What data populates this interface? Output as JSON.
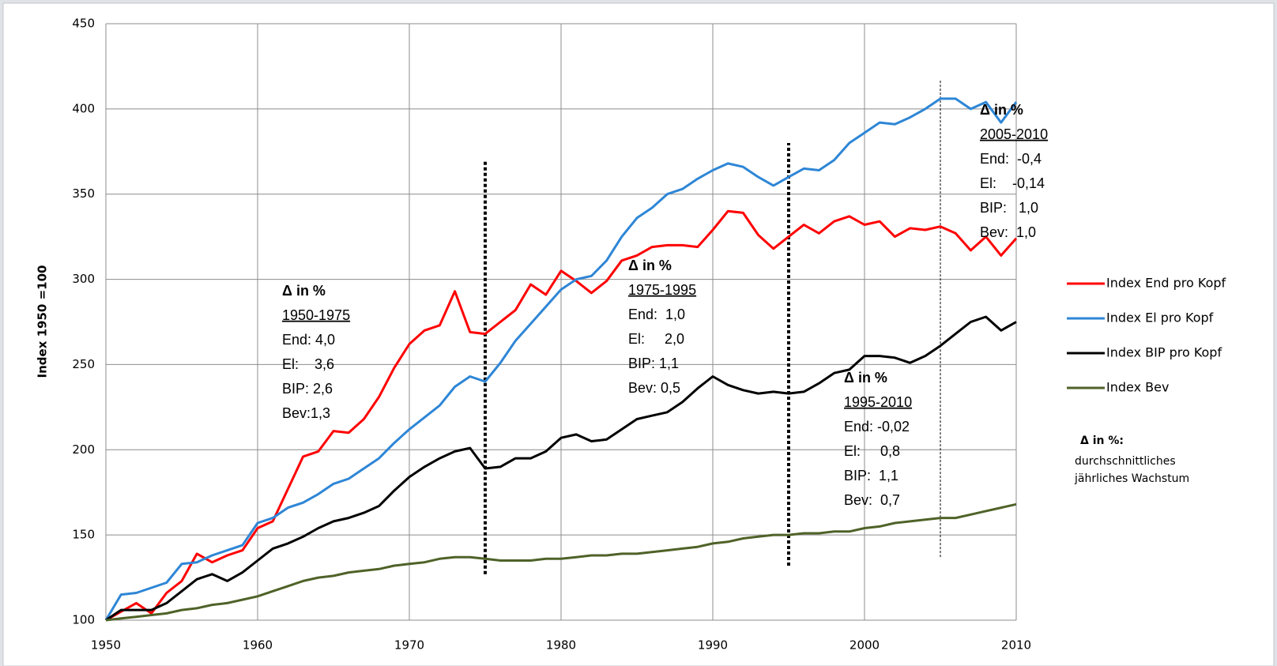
{
  "chart_data": {
    "type": "line",
    "ylabel": "Index 1950 =100",
    "x": [
      1950,
      1951,
      1952,
      1953,
      1954,
      1955,
      1956,
      1957,
      1958,
      1959,
      1960,
      1961,
      1962,
      1963,
      1964,
      1965,
      1966,
      1967,
      1968,
      1969,
      1970,
      1971,
      1972,
      1973,
      1974,
      1975,
      1976,
      1977,
      1978,
      1979,
      1980,
      1981,
      1982,
      1983,
      1984,
      1985,
      1986,
      1987,
      1988,
      1989,
      1990,
      1991,
      1992,
      1993,
      1994,
      1995,
      1996,
      1997,
      1998,
      1999,
      2000,
      2001,
      2002,
      2003,
      2004,
      2005,
      2006,
      2007,
      2008,
      2009,
      2010
    ],
    "xlim": [
      1950,
      2010
    ],
    "xticks": [
      1950,
      1960,
      1970,
      1980,
      1990,
      2000,
      2010
    ],
    "ylim": [
      100,
      450
    ],
    "yticks": [
      100,
      150,
      200,
      250,
      300,
      350,
      400,
      450
    ],
    "grid": true,
    "legend": "right",
    "series": [
      {
        "name": "Index End pro Kopf",
        "color": "#ff0000",
        "values": [
          100,
          105,
          110,
          104,
          116,
          123,
          139,
          134,
          138,
          141,
          154,
          158,
          177,
          196,
          199,
          211,
          210,
          218,
          231,
          248,
          262,
          270,
          273,
          293,
          269,
          268,
          275,
          282,
          297,
          291,
          305,
          299,
          292,
          299,
          311,
          314,
          319,
          320,
          320,
          319,
          329,
          340,
          339,
          326,
          318,
          325,
          332,
          327,
          334,
          337,
          332,
          334,
          325,
          330,
          329,
          331,
          327,
          317,
          325,
          314,
          324
        ]
      },
      {
        "name": "Index El pro Kopf",
        "color": "#2e86d6",
        "values": [
          100,
          115,
          116,
          119,
          122,
          133,
          134,
          138,
          141,
          144,
          157,
          160,
          166,
          169,
          174,
          180,
          183,
          189,
          195,
          204,
          212,
          219,
          226,
          237,
          243,
          240,
          251,
          264,
          274,
          284,
          294,
          300,
          302,
          311,
          325,
          336,
          342,
          350,
          353,
          359,
          364,
          368,
          366,
          360,
          355,
          360,
          365,
          364,
          370,
          380,
          386,
          392,
          391,
          395,
          400,
          406,
          406,
          400,
          404,
          392,
          404
        ]
      },
      {
        "name": "Index BIP pro Kopf",
        "color": "#000000",
        "values": [
          100,
          106,
          106,
          106,
          110,
          117,
          124,
          127,
          123,
          128,
          135,
          142,
          145,
          149,
          154,
          158,
          160,
          163,
          167,
          176,
          184,
          190,
          195,
          199,
          201,
          189,
          190,
          195,
          195,
          199,
          207,
          209,
          205,
          206,
          212,
          218,
          220,
          222,
          228,
          236,
          243,
          238,
          235,
          233,
          234,
          233,
          234,
          239,
          245,
          247,
          255,
          255,
          254,
          251,
          255,
          261,
          268,
          275,
          278,
          270,
          275
        ]
      },
      {
        "name": "Index Bev",
        "color": "#4f6228",
        "values": [
          100,
          101,
          102,
          103,
          104,
          106,
          107,
          109,
          110,
          112,
          114,
          117,
          120,
          123,
          125,
          126,
          128,
          129,
          130,
          132,
          133,
          134,
          136,
          137,
          137,
          136,
          135,
          135,
          135,
          136,
          136,
          137,
          138,
          138,
          139,
          139,
          140,
          141,
          142,
          143,
          145,
          146,
          148,
          149,
          150,
          150,
          151,
          151,
          152,
          152,
          154,
          155,
          157,
          158,
          159,
          160,
          160,
          162,
          164,
          166,
          168
        ]
      }
    ],
    "vlines": [
      {
        "x": 1975,
        "y": [
          127,
          370
        ],
        "style": "dotted"
      },
      {
        "x": 1995,
        "y": [
          132,
          380
        ],
        "style": "dotted"
      },
      {
        "x": 2005,
        "y": [
          137,
          417
        ],
        "style": "dashed"
      }
    ],
    "annotations": [
      {
        "heading": "Δ in %",
        "period": "1950-1975",
        "lines": [
          "End: 4,0",
          "El:    3,6",
          "BIP: 2,6",
          "Bev:1,3"
        ]
      },
      {
        "heading": "Δ in %",
        "period": "1975-1995",
        "lines": [
          "End:  1,0",
          "El:     2,0",
          "BIP: 1,1",
          "Bev: 0,5"
        ]
      },
      {
        "heading": "Δ in %",
        "period": "1995-2010",
        "lines": [
          "End: -0,02",
          "El:     0,8",
          "BIP:  1,1",
          "Bev:  0,7"
        ]
      },
      {
        "heading": "Δ in %",
        "period": "2005-2010",
        "lines": [
          "End:  -0,4",
          "El:    -0,14",
          "BIP:   1,0",
          "Bev:  1,0"
        ]
      }
    ],
    "note": {
      "heading": "Δ in %:",
      "lines": [
        "durchschnittliches",
        "jährliches Wachstum"
      ]
    }
  }
}
